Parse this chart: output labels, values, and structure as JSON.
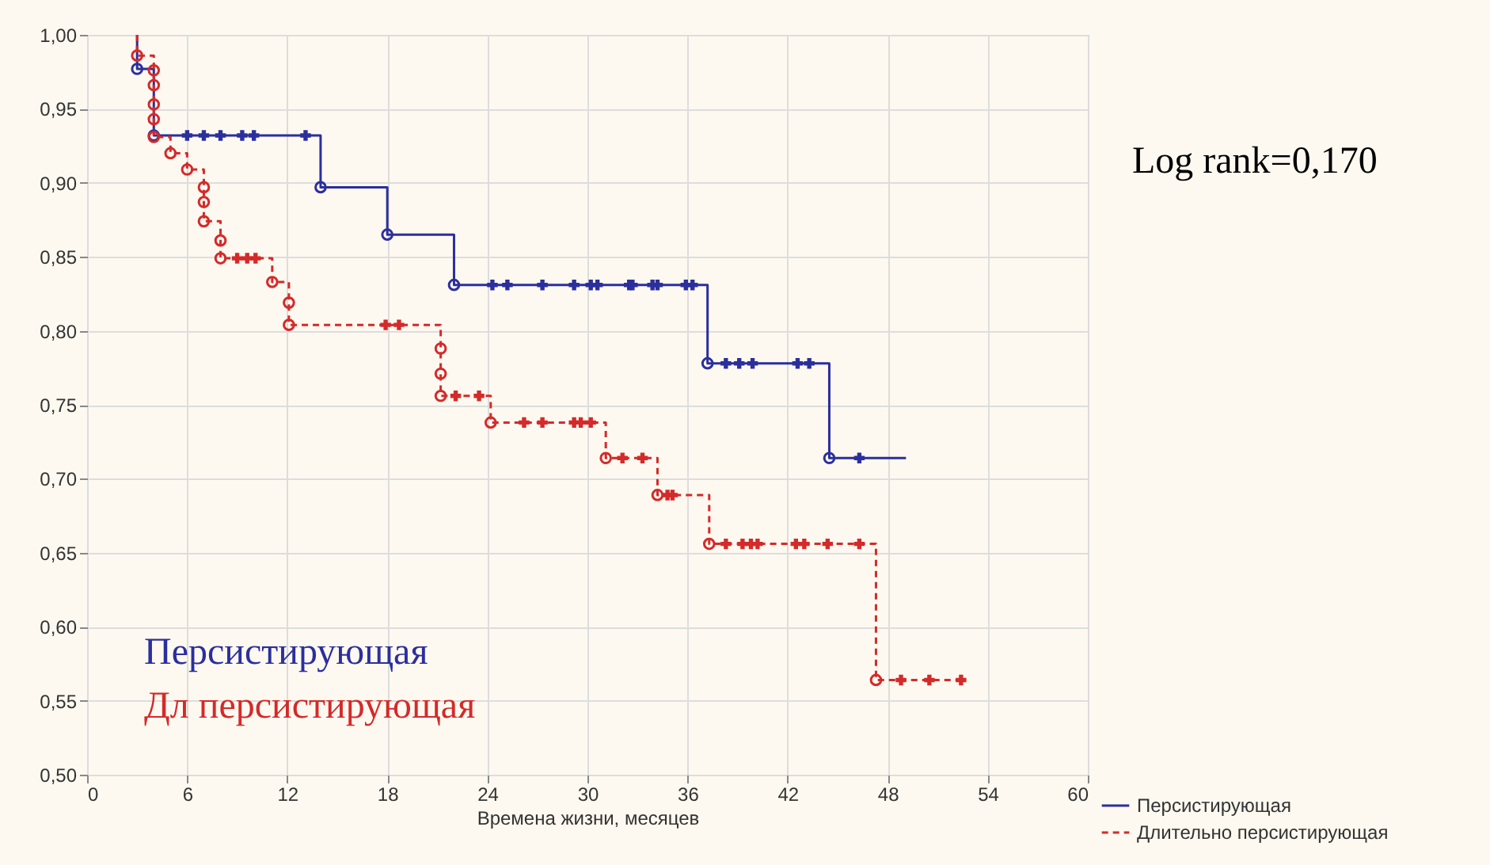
{
  "chart_data": {
    "type": "step",
    "xlabel": "Времена жизни, месяцев",
    "xlim": [
      0,
      60
    ],
    "xticks": [
      0,
      6,
      12,
      18,
      24,
      30,
      36,
      42,
      48,
      54,
      60
    ],
    "ylim": [
      0.5,
      1.0
    ],
    "yticks": [
      {
        "value": 0.5,
        "label": "0,50"
      },
      {
        "value": 0.55,
        "label": "0,55"
      },
      {
        "value": 0.6,
        "label": "0,60"
      },
      {
        "value": 0.65,
        "label": "0,65"
      },
      {
        "value": 0.7,
        "label": "0,70"
      },
      {
        "value": 0.75,
        "label": "0,75"
      },
      {
        "value": 0.8,
        "label": "0,80"
      },
      {
        "value": 0.85,
        "label": "0,85"
      },
      {
        "value": 0.9,
        "label": "0,90"
      },
      {
        "value": 0.95,
        "label": "0,95"
      },
      {
        "value": 1.0,
        "label": "1,00"
      }
    ],
    "grid": true,
    "legend": "bottom right",
    "annotations": [
      "Log rank=0,170",
      "Персистирующая",
      "Дл персистирующая"
    ],
    "series": [
      {
        "name": "Персистирующая",
        "type": "step",
        "color": "#2b2f9e",
        "line_style": "solid",
        "marker": "none",
        "x": [
          3,
          3,
          4,
          14,
          18,
          22,
          37.2,
          44.5,
          49.1
        ],
        "values": [
          1.0,
          0.977,
          0.932,
          0.897,
          0.865,
          0.831,
          0.778,
          0.714,
          0.714
        ]
      },
      {
        "name": "Длительно персистирующая",
        "type": "step",
        "color": "#d42a2a",
        "line_style": "dashed",
        "marker": "none",
        "x": [
          3,
          3,
          4,
          5,
          6,
          7,
          8,
          11.1,
          12.1,
          21.2,
          24.2,
          31.1,
          34.2,
          37.3,
          47.3,
          52.4
        ],
        "values": [
          1.0,
          0.986,
          0.931,
          0.92,
          0.909,
          0.874,
          0.849,
          0.833,
          0.804,
          0.756,
          0.738,
          0.714,
          0.689,
          0.656,
          0.564,
          0.564
        ]
      },
      {
        "type": "scatter",
        "color": "#2b2f9e",
        "marker": "circle",
        "x": [
          3,
          4,
          14,
          18,
          22,
          37.2,
          44.5
        ],
        "values": [
          0.977,
          0.932,
          0.897,
          0.865,
          0.831,
          0.778,
          0.714
        ]
      },
      {
        "type": "scatter",
        "color": "#d42a2a",
        "marker": "circle",
        "x": [
          3,
          4,
          4,
          4,
          4,
          4,
          5,
          6,
          7,
          7,
          7,
          8,
          8,
          11.1,
          12.1,
          12.1,
          21.2,
          21.2,
          21.2,
          24.2,
          31.1,
          34.2,
          37.3,
          47.3
        ],
        "values": [
          0.986,
          0.976,
          0.966,
          0.953,
          0.943,
          0.931,
          0.92,
          0.909,
          0.897,
          0.887,
          0.874,
          0.861,
          0.849,
          0.833,
          0.819,
          0.804,
          0.788,
          0.771,
          0.756,
          0.738,
          0.714,
          0.689,
          0.656,
          0.564
        ]
      },
      {
        "type": "scatter",
        "color": "#2b2f9e",
        "marker": "cross",
        "x": [
          6,
          7,
          8,
          9.3,
          10,
          13.1,
          24.3,
          25.2,
          27.3,
          29.2,
          30.2,
          30.6,
          32.5,
          32.7,
          33.9,
          34.2,
          35.9,
          36.3,
          38.3,
          39.1,
          39.9,
          42.6,
          43.3,
          46.3
        ],
        "values": [
          0.932,
          0.932,
          0.932,
          0.932,
          0.932,
          0.932,
          0.831,
          0.831,
          0.831,
          0.831,
          0.831,
          0.831,
          0.831,
          0.831,
          0.831,
          0.831,
          0.831,
          0.831,
          0.778,
          0.778,
          0.778,
          0.778,
          0.778,
          0.714
        ]
      },
      {
        "type": "scatter",
        "color": "#d42a2a",
        "marker": "cross",
        "x": [
          9,
          9.6,
          10.1,
          17.9,
          18.7,
          22.1,
          23.5,
          26.2,
          27.3,
          29.2,
          29.6,
          30.2,
          32.1,
          33.3,
          34.8,
          35.1,
          38.3,
          39.3,
          39.8,
          40.2,
          42.5,
          43,
          44.4,
          46.3,
          48.8,
          50.5,
          52.4
        ],
        "values": [
          0.849,
          0.849,
          0.849,
          0.804,
          0.804,
          0.756,
          0.756,
          0.738,
          0.738,
          0.738,
          0.738,
          0.738,
          0.714,
          0.714,
          0.689,
          0.689,
          0.656,
          0.656,
          0.656,
          0.656,
          0.656,
          0.656,
          0.656,
          0.656,
          0.564,
          0.564,
          0.564
        ]
      }
    ]
  }
}
